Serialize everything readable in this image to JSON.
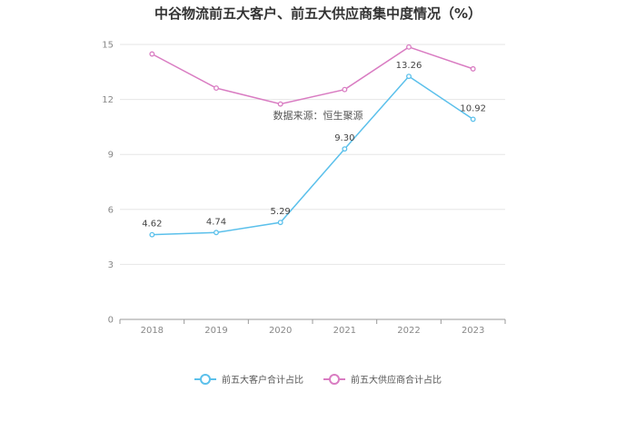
{
  "chart_data": {
    "type": "line",
    "title": "中谷物流前五大客户、前五大供应商集中度情况（%）",
    "categories": [
      "2018",
      "2019",
      "2020",
      "2021",
      "2022",
      "2023"
    ],
    "yticks": [
      "0",
      "3",
      "6",
      "9",
      "12",
      "15"
    ],
    "ylim": [
      0,
      15
    ],
    "grid": true,
    "legend_position": "bottom",
    "series": [
      {
        "name": "前五大客户合计占比",
        "color": "#5bc0eb",
        "values": [
          4.62,
          4.74,
          5.29,
          9.3,
          13.26,
          10.92
        ],
        "labels": [
          "4.62",
          "4.74",
          "5.29",
          "9.30",
          "13.26",
          "10.92"
        ]
      },
      {
        "name": "前五大供应商合计占比",
        "color": "#d97cc2",
        "values": [
          14.48,
          12.62,
          11.75,
          12.54,
          14.86,
          13.67
        ],
        "labels": []
      }
    ],
    "annotation": "数据来源：恒生聚源"
  }
}
